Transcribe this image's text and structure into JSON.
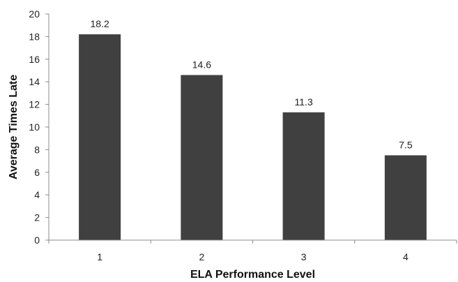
{
  "chart_data": {
    "type": "bar",
    "categories": [
      "1",
      "2",
      "3",
      "4"
    ],
    "values": [
      18.2,
      14.6,
      11.3,
      7.5
    ],
    "data_labels": [
      "18.2",
      "14.6",
      "11.3",
      "7.5"
    ],
    "xlabel": "ELA Performance Level",
    "ylabel": "Average Times Late",
    "ylim": [
      0,
      20
    ],
    "yticks": [
      "0",
      "2",
      "4",
      "6",
      "8",
      "10",
      "12",
      "14",
      "16",
      "18",
      "20"
    ],
    "grid": false,
    "legend": "none",
    "bar_color": "#404040"
  }
}
